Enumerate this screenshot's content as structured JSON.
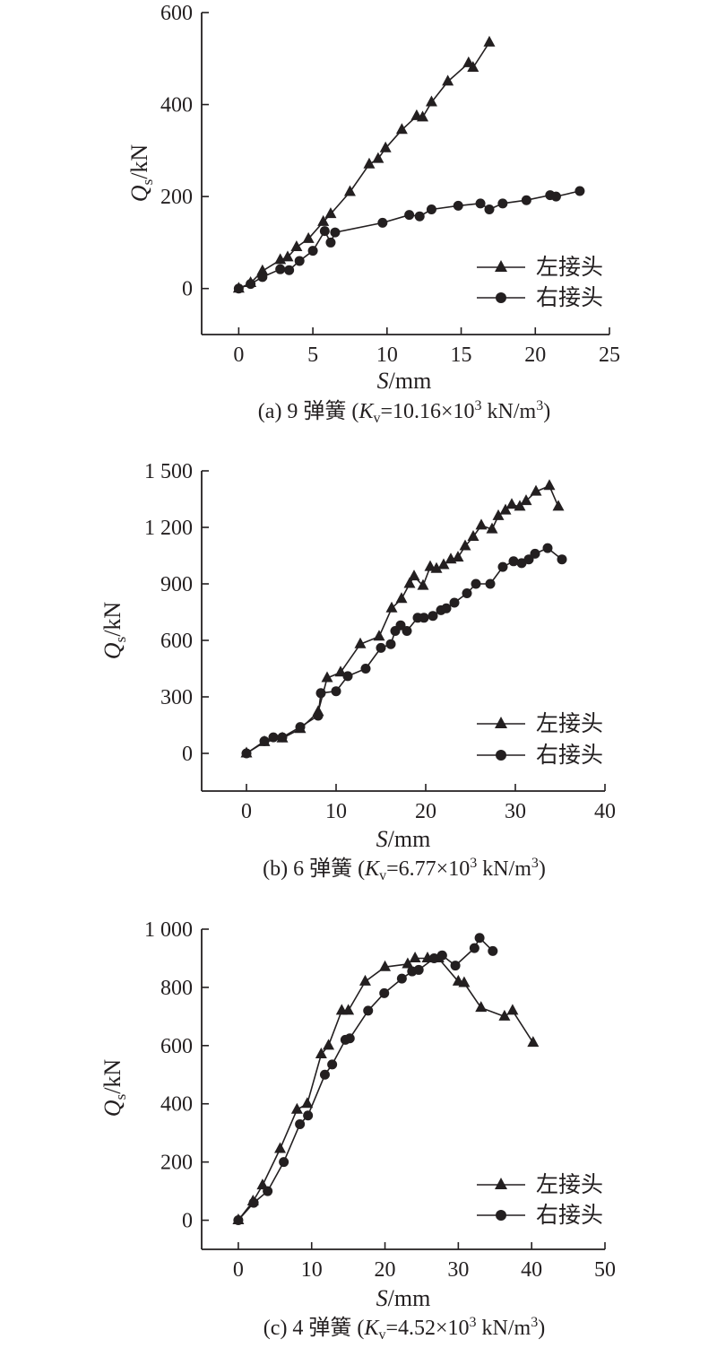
{
  "chart_data": [
    {
      "type": "line",
      "caption": "(a) 9 弹簧 (Kv=10.16×10³ kN/m³)",
      "caption_parts": {
        "prefix": "(a) 9 弹簧 (",
        "k": "K",
        "sub": "v",
        "value": "=10.16×10",
        "sup": "3",
        "unit": " kN/m",
        "unit_sup": "3",
        "end": ")"
      },
      "xlabel": "S/mm",
      "ylabel": "Qs/kN",
      "xlim": [
        -2.5,
        25
      ],
      "ylim": [
        -100,
        600
      ],
      "xticks": [
        0,
        5,
        10,
        15,
        20,
        25
      ],
      "yticks": [
        0,
        200,
        400,
        600
      ],
      "xtick_labels": [
        "0",
        "5",
        "10",
        "15",
        "20",
        "25"
      ],
      "ytick_labels": [
        "0",
        "200",
        "400",
        "600"
      ],
      "legend_position": "bottom-right",
      "series": [
        {
          "name": "左接头",
          "marker": "triangle",
          "x": [
            0,
            0.8,
            1.6,
            2.8,
            3.3,
            3.9,
            4.7,
            5.7,
            6.2,
            7.5,
            8.8,
            9.4,
            9.9,
            11,
            12,
            12.4,
            13,
            14.1,
            15.5,
            15.8,
            16.9
          ],
          "y": [
            0,
            12,
            38,
            62,
            68,
            90,
            108,
            145,
            162,
            210,
            270,
            282,
            305,
            345,
            375,
            372,
            405,
            450,
            490,
            480,
            535
          ]
        },
        {
          "name": "右接头",
          "marker": "circle",
          "x": [
            0,
            0.8,
            1.6,
            2.8,
            3.4,
            4.1,
            5,
            5.8,
            6.2,
            6.5,
            9.7,
            11.5,
            12.2,
            13,
            14.8,
            16.3,
            16.9,
            17.8,
            19.4,
            21,
            21.4,
            23
          ],
          "y": [
            0,
            10,
            25,
            42,
            40,
            60,
            82,
            125,
            100,
            122,
            143,
            160,
            157,
            172,
            180,
            185,
            172,
            185,
            192,
            203,
            200,
            212
          ]
        }
      ]
    },
    {
      "type": "line",
      "caption": "(b) 6 弹簧 (Kv=6.77×10³ kN/m³)",
      "caption_parts": {
        "prefix": "(b) 6 弹簧 (",
        "k": "K",
        "sub": "v",
        "value": "=6.77×10",
        "sup": "3",
        "unit": " kN/m",
        "unit_sup": "3",
        "end": ")"
      },
      "xlabel": "S/mm",
      "ylabel": "Qs/kN",
      "xlim": [
        -5,
        40
      ],
      "ylim": [
        -200,
        1500
      ],
      "xticks": [
        0,
        10,
        20,
        30,
        40
      ],
      "yticks": [
        0,
        300,
        600,
        900,
        1200,
        1500
      ],
      "xtick_labels": [
        "0",
        "10",
        "20",
        "30",
        "40"
      ],
      "ytick_labels": [
        "0",
        "300",
        "600",
        "900",
        "1 200",
        "1 500"
      ],
      "legend_position": "bottom-right",
      "series": [
        {
          "name": "左接头",
          "marker": "triangle",
          "x": [
            0,
            2,
            4,
            6,
            8,
            9,
            10.5,
            12.7,
            14.8,
            16.2,
            17.3,
            18.2,
            18.7,
            19.7,
            20.5,
            21.2,
            22,
            22.8,
            23.6,
            24.4,
            25.3,
            26.2,
            27.4,
            28.1,
            28.9,
            29.6,
            30.5,
            31.2,
            32.3,
            33.8,
            34.8
          ],
          "y": [
            0,
            60,
            80,
            130,
            220,
            400,
            430,
            580,
            620,
            770,
            820,
            900,
            940,
            890,
            990,
            980,
            1000,
            1030,
            1040,
            1100,
            1150,
            1210,
            1190,
            1260,
            1290,
            1320,
            1310,
            1340,
            1390,
            1420,
            1310
          ]
        },
        {
          "name": "右接头",
          "marker": "circle",
          "x": [
            0,
            2,
            3,
            4,
            6,
            8,
            8.3,
            10,
            11.3,
            13.3,
            15,
            16.1,
            16.6,
            17.2,
            17.9,
            19.1,
            19.8,
            20.8,
            21.7,
            22.3,
            23.2,
            24.6,
            25.6,
            27.2,
            28.6,
            29.8,
            30.7,
            31.5,
            32.2,
            33.6,
            35.2
          ],
          "y": [
            0,
            65,
            85,
            85,
            140,
            200,
            320,
            330,
            410,
            450,
            560,
            580,
            650,
            680,
            650,
            720,
            720,
            730,
            760,
            770,
            800,
            850,
            900,
            900,
            990,
            1020,
            1010,
            1030,
            1060,
            1090,
            1030
          ]
        }
      ]
    },
    {
      "type": "line",
      "caption": "(c) 4 弹簧 (Kv=4.52×10³ kN/m³)",
      "caption_parts": {
        "prefix": "(c) 4 弹簧 (",
        "k": "K",
        "sub": "v",
        "value": "=4.52×10",
        "sup": "3",
        "unit": " kN/m",
        "unit_sup": "3",
        "end": ")"
      },
      "xlabel": "S/mm",
      "ylabel": "Qs/kN",
      "xlim": [
        -5,
        50
      ],
      "ylim": [
        -100,
        1000
      ],
      "xticks": [
        0,
        10,
        20,
        30,
        40,
        50
      ],
      "yticks": [
        0,
        200,
        400,
        600,
        800,
        1000
      ],
      "xtick_labels": [
        "0",
        "10",
        "20",
        "30",
        "40",
        "50"
      ],
      "ytick_labels": [
        "0",
        "200",
        "400",
        "600",
        "800",
        "1 000"
      ],
      "legend_position": "bottom-right",
      "series": [
        {
          "name": "左接头",
          "marker": "triangle",
          "x": [
            0,
            2,
            3.3,
            5.7,
            8,
            9.4,
            11.3,
            12.3,
            14.1,
            15,
            17.3,
            20,
            23.1,
            24.1,
            25.8,
            27.3,
            30,
            30.8,
            33.1,
            36.3,
            37.4,
            40.2
          ],
          "y": [
            0,
            65,
            120,
            245,
            380,
            400,
            570,
            600,
            720,
            720,
            820,
            870,
            880,
            900,
            900,
            900,
            820,
            815,
            730,
            700,
            720,
            610
          ]
        },
        {
          "name": "右接头",
          "marker": "circle",
          "x": [
            0,
            2.1,
            4,
            6.2,
            8.4,
            9.5,
            11.8,
            12.8,
            14.6,
            15.2,
            17.7,
            19.9,
            22.3,
            23.7,
            24.6,
            26.7,
            27.8,
            29.6,
            32.2,
            32.9,
            34.7
          ],
          "y": [
            0,
            60,
            100,
            200,
            330,
            360,
            500,
            535,
            620,
            625,
            720,
            780,
            830,
            855,
            860,
            900,
            910,
            875,
            935,
            970,
            925
          ]
        }
      ]
    }
  ]
}
